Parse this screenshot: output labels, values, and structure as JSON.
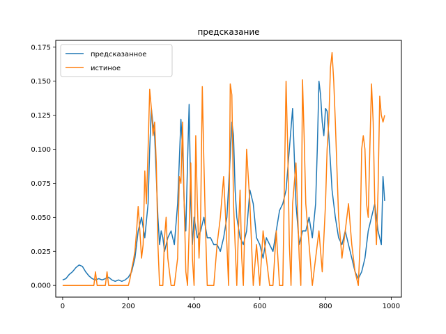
{
  "chart_data": {
    "type": "line",
    "title": "предсказание",
    "xlabel": "",
    "ylabel": "",
    "xlim": [
      -21.0,
      1031.0
    ],
    "ylim": [
      -0.0086,
      0.18
    ],
    "xticks": [
      0,
      200,
      400,
      600,
      800,
      1000
    ],
    "xtick_labels": [
      "0",
      "200",
      "400",
      "600",
      "800",
      "1000"
    ],
    "yticks": [
      0.0,
      0.025,
      0.05,
      0.075,
      0.1,
      0.125,
      0.15,
      0.175
    ],
    "ytick_labels": [
      "0.000",
      "0.025",
      "0.050",
      "0.075",
      "0.100",
      "0.125",
      "0.150",
      "0.175"
    ],
    "grid": false,
    "legend_placement": "upper-left",
    "series": [
      {
        "name": "предсказанное",
        "color": "#1f77b4",
        "x": [
          0,
          10,
          20,
          30,
          40,
          50,
          60,
          70,
          80,
          90,
          100,
          110,
          120,
          130,
          140,
          150,
          160,
          170,
          180,
          190,
          200,
          210,
          220,
          230,
          240,
          250,
          260,
          265,
          270,
          275,
          280,
          285,
          290,
          295,
          300,
          305,
          310,
          320,
          330,
          340,
          350,
          360,
          365,
          370,
          375,
          380,
          385,
          390,
          395,
          400,
          410,
          420,
          430,
          440,
          450,
          460,
          470,
          480,
          490,
          500,
          510,
          515,
          520,
          525,
          530,
          540,
          550,
          560,
          570,
          580,
          590,
          600,
          610,
          620,
          630,
          640,
          650,
          660,
          670,
          680,
          690,
          700,
          710,
          720,
          730,
          740,
          750,
          760,
          770,
          775,
          780,
          785,
          790,
          795,
          800,
          805,
          810,
          815,
          820,
          830,
          840,
          850,
          860,
          870,
          880,
          890,
          900,
          910,
          920,
          930,
          940,
          950,
          960,
          970,
          975,
          980
        ],
        "y": [
          0.004,
          0.005,
          0.008,
          0.01,
          0.013,
          0.015,
          0.014,
          0.01,
          0.007,
          0.005,
          0.004,
          0.005,
          0.004,
          0.005,
          0.006,
          0.004,
          0.003,
          0.004,
          0.003,
          0.004,
          0.006,
          0.01,
          0.02,
          0.04,
          0.05,
          0.035,
          0.06,
          0.1,
          0.13,
          0.118,
          0.11,
          0.08,
          0.05,
          0.03,
          0.04,
          0.035,
          0.025,
          0.035,
          0.04,
          0.03,
          0.06,
          0.122,
          0.1,
          0.06,
          0.04,
          0.09,
          0.133,
          0.06,
          0.03,
          0.05,
          0.035,
          0.04,
          0.05,
          0.035,
          0.035,
          0.03,
          0.03,
          0.025,
          0.035,
          0.05,
          0.095,
          0.12,
          0.11,
          0.07,
          0.05,
          0.035,
          0.03,
          0.04,
          0.07,
          0.06,
          0.035,
          0.03,
          0.02,
          0.035,
          0.03,
          0.025,
          0.04,
          0.055,
          0.06,
          0.07,
          0.1,
          0.13,
          0.06,
          0.03,
          0.04,
          0.04,
          0.05,
          0.035,
          0.06,
          0.1,
          0.15,
          0.14,
          0.12,
          0.11,
          0.13,
          0.128,
          0.11,
          0.09,
          0.07,
          0.05,
          0.035,
          0.03,
          0.04,
          0.03,
          0.02,
          0.01,
          0.005,
          0.01,
          0.02,
          0.04,
          0.05,
          0.06,
          0.04,
          0.03,
          0.08,
          0.062
        ]
      },
      {
        "name": "истиное",
        "color": "#ff7f0e",
        "x": [
          0,
          20,
          40,
          60,
          80,
          95,
          100,
          105,
          110,
          120,
          130,
          135,
          140,
          150,
          160,
          170,
          180,
          190,
          200,
          205,
          210,
          215,
          220,
          225,
          230,
          235,
          240,
          245,
          250,
          255,
          260,
          265,
          270,
          275,
          280,
          285,
          290,
          295,
          300,
          305,
          310,
          315,
          320,
          330,
          340,
          350,
          355,
          360,
          365,
          370,
          375,
          380,
          385,
          390,
          395,
          400,
          405,
          410,
          415,
          420,
          425,
          430,
          435,
          440,
          445,
          450,
          455,
          460,
          470,
          480,
          490,
          500,
          505,
          510,
          515,
          520,
          525,
          530,
          535,
          540,
          545,
          550,
          560,
          570,
          580,
          590,
          600,
          610,
          620,
          630,
          640,
          650,
          660,
          670,
          680,
          685,
          690,
          695,
          700,
          710,
          720,
          725,
          730,
          735,
          740,
          750,
          760,
          770,
          780,
          790,
          800,
          805,
          810,
          815,
          820,
          825,
          830,
          840,
          850,
          860,
          870,
          880,
          890,
          900,
          905,
          910,
          915,
          920,
          925,
          930,
          935,
          940,
          945,
          950,
          955,
          960,
          965,
          970,
          975,
          980
        ],
        "y": [
          0,
          0,
          0,
          0,
          0,
          0,
          0.01,
          0,
          0,
          0,
          0,
          0.01,
          0,
          0,
          0,
          0,
          0,
          0,
          0,
          0.005,
          0.012,
          0.018,
          0.025,
          0.04,
          0.058,
          0.04,
          0.02,
          0.03,
          0.084,
          0.06,
          0.1,
          0.144,
          0.13,
          0.11,
          0.12,
          0.09,
          0.03,
          0,
          0,
          0,
          0.035,
          0.05,
          0.02,
          0,
          0,
          0.02,
          0.08,
          0.075,
          0.12,
          0.06,
          0.01,
          0,
          0.04,
          0.09,
          0.02,
          0,
          0.11,
          0.06,
          0.02,
          0.05,
          0.146,
          0.09,
          0.04,
          0,
          0,
          0,
          0,
          0,
          0.03,
          0.05,
          0.08,
          0.03,
          0,
          0.148,
          0.14,
          0.06,
          0.03,
          0,
          0.04,
          0.07,
          0.02,
          0,
          0.1,
          0.06,
          0,
          0.03,
          0,
          0.04,
          0.02,
          0,
          0,
          0.04,
          0,
          0,
          0.15,
          0.1,
          0.03,
          0,
          0.06,
          0.09,
          0.02,
          0,
          0.151,
          0.11,
          0.06,
          0.03,
          0,
          0.02,
          0.04,
          0.01,
          0.06,
          0.1,
          0.12,
          0.16,
          0.171,
          0.15,
          0.12,
          0.05,
          0.02,
          0.04,
          0.06,
          0.03,
          0.01,
          0,
          0.03,
          0.1,
          0.11,
          0.1,
          0.06,
          0.05,
          0.1,
          0.148,
          0.12,
          0.06,
          0.03,
          0.07,
          0.139,
          0.125,
          0.12,
          0.125
        ]
      }
    ]
  }
}
